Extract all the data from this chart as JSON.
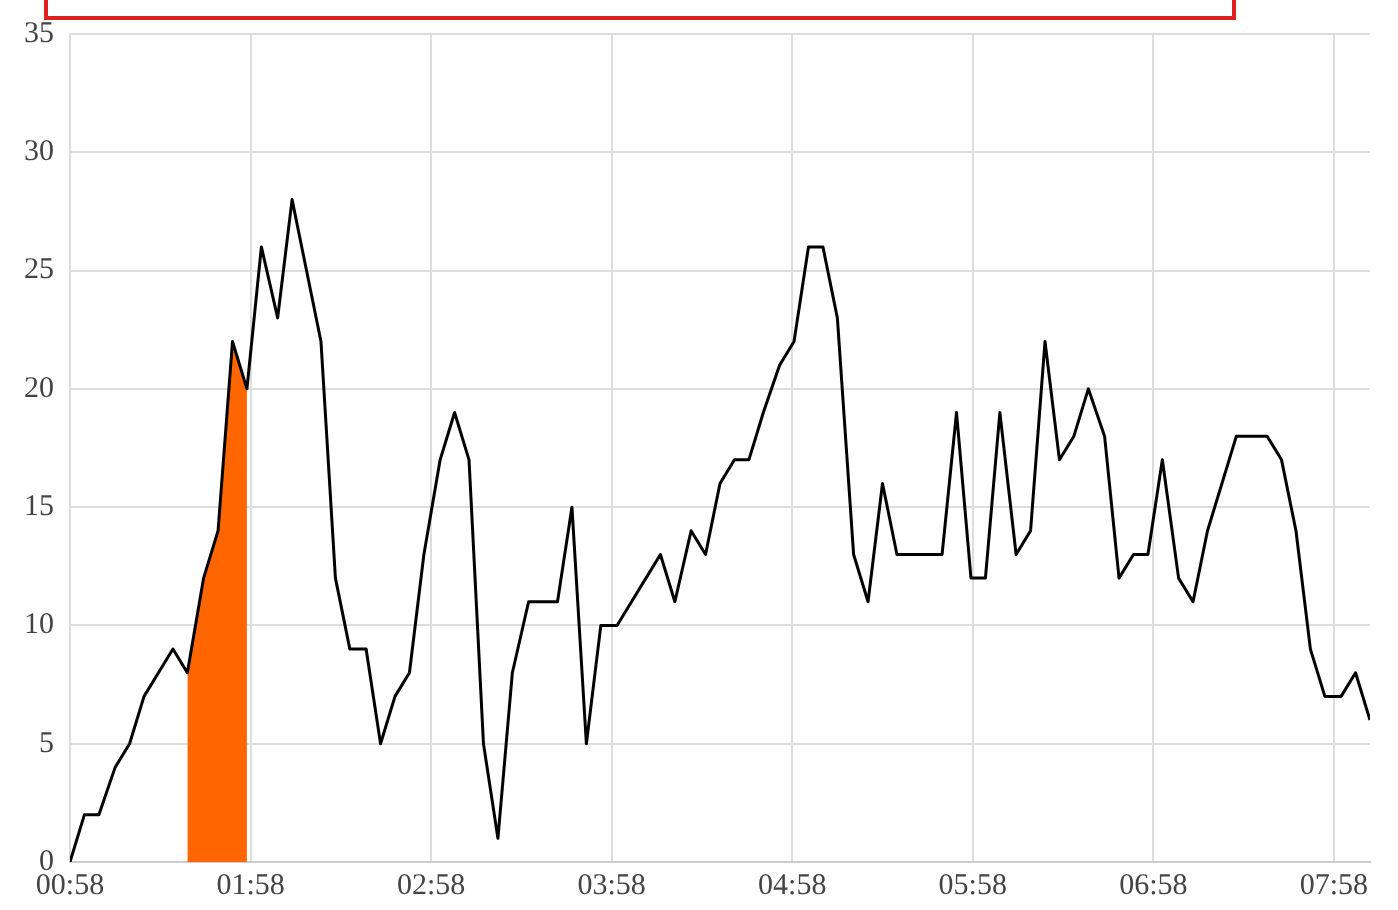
{
  "chart_data": {
    "type": "line",
    "x": [
      0.97,
      1.05,
      1.13,
      1.22,
      1.3,
      1.38,
      1.46,
      1.54,
      1.62,
      1.71,
      1.79,
      1.87,
      1.95,
      2.03,
      2.12,
      2.2,
      2.28,
      2.36,
      2.44,
      2.52,
      2.61,
      2.69,
      2.77,
      2.85,
      2.93,
      3.02,
      3.1,
      3.18,
      3.26,
      3.34,
      3.42,
      3.51,
      3.59,
      3.67,
      3.75,
      3.83,
      3.91,
      4.0,
      4.08,
      4.16,
      4.24,
      4.32,
      4.41,
      4.49,
      4.57,
      4.65,
      4.73,
      4.81,
      4.9,
      4.98,
      5.06,
      5.14,
      5.22,
      5.31,
      5.39,
      5.47,
      5.55,
      5.63,
      5.71,
      5.8,
      5.88,
      5.96,
      6.04,
      6.12,
      6.21,
      6.29,
      6.37,
      6.45,
      6.53,
      6.61,
      6.7,
      6.78,
      6.86,
      6.94,
      7.02,
      7.11,
      7.19,
      7.27,
      7.35,
      7.43,
      7.51,
      7.6,
      7.68,
      7.76,
      7.84,
      7.92,
      8.01,
      8.09,
      8.17
    ],
    "series": [
      {
        "type": "area",
        "color": "#ff6600",
        "x": [
          1.62,
          1.71,
          1.79,
          1.87,
          1.95
        ],
        "values": [
          8,
          12,
          14,
          22,
          20
        ]
      },
      {
        "color": "#000000",
        "values": [
          0,
          2,
          2,
          4,
          5,
          7,
          8,
          9,
          8,
          12,
          14,
          22,
          20,
          26,
          23,
          28,
          25,
          22,
          12,
          9,
          9,
          5,
          7,
          8,
          13,
          17,
          19,
          17,
          5,
          1,
          8,
          11,
          11,
          11,
          15,
          5,
          10,
          10,
          11,
          12,
          13,
          11,
          14,
          13,
          16,
          17,
          17,
          19,
          21,
          22,
          26,
          26,
          23,
          13,
          11,
          16,
          13,
          13,
          13,
          13,
          19,
          12,
          12,
          19,
          13,
          14,
          22,
          17,
          18,
          20,
          18,
          12,
          13,
          13,
          17,
          12,
          11,
          14,
          16,
          18,
          18,
          18,
          17,
          14,
          9,
          7,
          7,
          8,
          6
        ]
      }
    ],
    "xlim": [
      0.97,
      8.17
    ],
    "xticks": [
      {
        "value": 0.97,
        "label": "00:58"
      },
      {
        "value": 1.97,
        "label": "01:58"
      },
      {
        "value": 2.97,
        "label": "02:58"
      },
      {
        "value": 3.97,
        "label": "03:58"
      },
      {
        "value": 4.97,
        "label": "04:58"
      },
      {
        "value": 5.97,
        "label": "05:58"
      },
      {
        "value": 6.97,
        "label": "06:58"
      },
      {
        "value": 7.97,
        "label": "07:58"
      }
    ],
    "ylim": [
      0,
      35
    ],
    "yticks": [
      0,
      5,
      10,
      15,
      20,
      25,
      30,
      35
    ],
    "grid": true,
    "legend": false,
    "marker": "none",
    "line_style": "solid"
  }
}
